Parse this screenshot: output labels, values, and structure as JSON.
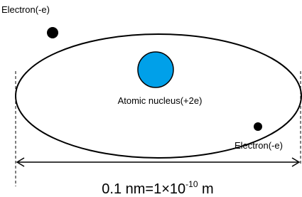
{
  "labels": {
    "electron_top": "Electron(-e)",
    "nucleus": "Atomic nucleus(+2e)",
    "electron_bottom": "Electron(-e)"
  },
  "scale": {
    "base": "0.1 nm=1×10",
    "exponent": "-10",
    "unit": " m"
  }
}
